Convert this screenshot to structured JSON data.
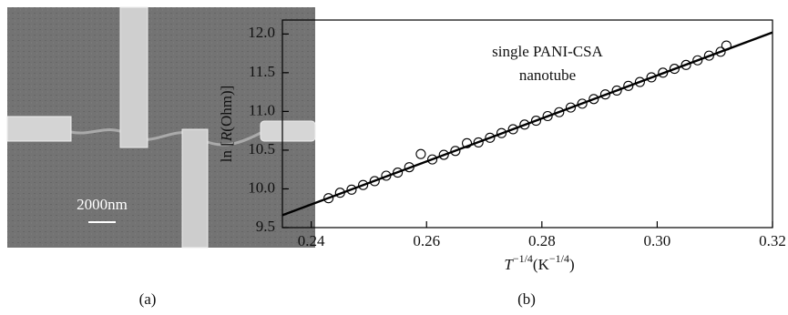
{
  "panel_a": {
    "scale_bar": "2000nm",
    "caption": "(a)"
  },
  "chart_data": {
    "type": "scatter",
    "caption": "(b)",
    "annotation": [
      "single PANI-CSA",
      "nanotube"
    ],
    "xlabel": [
      "T",
      "−1/4",
      "(K",
      "−1/4",
      ")"
    ],
    "ylabel": [
      "ln [",
      "R",
      "(Ohm)]"
    ],
    "xlim": [
      0.235,
      0.32
    ],
    "ylim": [
      9.5,
      12.18
    ],
    "xticks": [
      0.24,
      0.26,
      0.28,
      {
        "value": 0.3,
        "label": "0.30"
      },
      0.32
    ],
    "yticks": [
      {
        "value": 9.5,
        "label": "9.5"
      },
      {
        "value": 10,
        "label": "10.0"
      },
      {
        "value": 10.5,
        "label": "10.5"
      },
      {
        "value": 11,
        "label": "11.0"
      },
      {
        "value": 11.5,
        "label": "11.5"
      },
      {
        "value": 12,
        "label": "12.0"
      }
    ],
    "series": [
      {
        "type": "scatter",
        "color": "#000000",
        "x": [
          0.243,
          0.245,
          0.247,
          0.249,
          0.251,
          0.253,
          0.255,
          0.257,
          0.259,
          0.261,
          0.263,
          0.265,
          0.267,
          0.269,
          0.271,
          0.273,
          0.275,
          0.277,
          0.279,
          0.281,
          0.283,
          0.285,
          0.287,
          0.289,
          0.291,
          0.293,
          0.295,
          0.297,
          0.299,
          0.301,
          0.303,
          0.305,
          0.307,
          0.309,
          0.311,
          0.312
        ],
        "values": [
          9.88,
          9.95,
          9.99,
          10.05,
          10.1,
          10.17,
          10.21,
          10.28,
          10.45,
          10.38,
          10.44,
          10.49,
          10.59,
          10.6,
          10.66,
          10.72,
          10.77,
          10.83,
          10.88,
          10.94,
          10.99,
          11.05,
          11.1,
          11.16,
          11.22,
          11.27,
          11.33,
          11.38,
          11.44,
          11.5,
          11.55,
          11.6,
          11.66,
          11.72,
          11.77,
          11.85
        ]
      },
      {
        "type": "line",
        "color": "#000000",
        "x": [
          0.235,
          0.32
        ],
        "values": [
          9.66,
          12.02
        ]
      }
    ]
  }
}
